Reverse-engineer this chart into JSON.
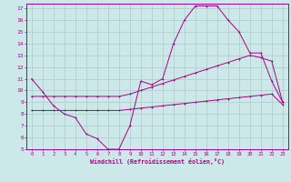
{
  "xlabel": "Windchill (Refroidissement éolien,°C)",
  "bg_color": "#cce8e8",
  "grid_color": "#aacccc",
  "line_color": "#aa0088",
  "spine_color": "#9900aa",
  "xlim": [
    -0.5,
    23.5
  ],
  "ylim": [
    5,
    17.4
  ],
  "xticks": [
    0,
    1,
    2,
    3,
    4,
    5,
    6,
    7,
    8,
    9,
    10,
    11,
    12,
    13,
    14,
    15,
    16,
    17,
    18,
    19,
    20,
    21,
    22,
    23
  ],
  "yticks": [
    5,
    6,
    7,
    8,
    9,
    10,
    11,
    12,
    13,
    14,
    15,
    16,
    17
  ],
  "curve1_x": [
    0,
    1,
    2,
    3,
    4,
    5,
    6,
    7,
    8,
    9,
    10,
    11,
    12,
    13,
    14,
    15,
    16,
    17,
    18,
    19,
    20,
    21,
    22,
    23
  ],
  "curve1_y": [
    11.0,
    9.9,
    8.7,
    8.0,
    7.7,
    6.3,
    5.9,
    5.0,
    5.0,
    7.0,
    10.8,
    10.5,
    11.0,
    14.0,
    16.0,
    17.2,
    17.2,
    17.2,
    16.0,
    15.0,
    13.2,
    13.2,
    10.8,
    9.0
  ],
  "curve2_x": [
    0,
    1,
    2,
    3,
    4,
    5,
    6,
    7,
    8,
    9,
    10,
    11,
    12,
    13,
    14,
    15,
    16,
    17,
    18,
    19,
    20,
    21,
    22,
    23
  ],
  "curve2_y": [
    8.3,
    8.3,
    8.3,
    8.3,
    8.3,
    8.3,
    8.3,
    8.3,
    8.3,
    8.4,
    8.5,
    8.6,
    8.7,
    8.8,
    8.9,
    9.0,
    9.1,
    9.2,
    9.3,
    9.4,
    9.5,
    9.6,
    9.7,
    8.8
  ],
  "curve3_x": [
    0,
    1,
    2,
    3,
    4,
    5,
    6,
    7,
    8,
    9,
    10,
    11,
    12,
    13,
    14,
    15,
    16,
    17,
    18,
    19,
    20,
    21,
    22,
    23
  ],
  "curve3_y": [
    9.5,
    9.5,
    9.5,
    9.5,
    9.5,
    9.5,
    9.5,
    9.5,
    9.5,
    9.7,
    10.0,
    10.3,
    10.6,
    10.9,
    11.2,
    11.5,
    11.8,
    12.1,
    12.4,
    12.7,
    13.0,
    12.8,
    12.5,
    9.0
  ]
}
